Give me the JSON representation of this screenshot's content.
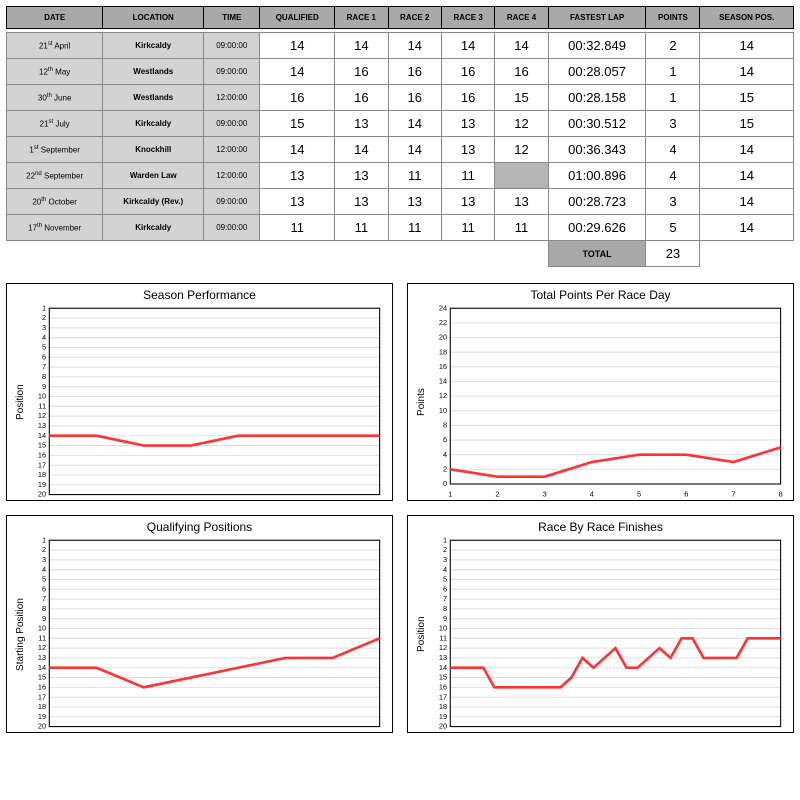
{
  "table": {
    "headers": [
      "DATE",
      "LOCATION",
      "TIME",
      "QUALIFIED",
      "RACE 1",
      "RACE 2",
      "RACE 3",
      "RACE 4",
      "FASTEST LAP",
      "POINTS",
      "SEASON POS."
    ],
    "rows": [
      {
        "date_d": "21",
        "date_ord": "st",
        "date_m": "April",
        "loc": "Kirkcaldy",
        "time": "09:00:00",
        "q": "14",
        "r1": "14",
        "r2": "14",
        "r3": "14",
        "r4": "14",
        "fl": "00:32.849",
        "pts": "2",
        "sp": "14"
      },
      {
        "date_d": "12",
        "date_ord": "th",
        "date_m": "May",
        "loc": "Westlands",
        "time": "09:00:00",
        "q": "14",
        "r1": "16",
        "r2": "16",
        "r3": "16",
        "r4": "16",
        "fl": "00:28.057",
        "pts": "1",
        "sp": "14"
      },
      {
        "date_d": "30",
        "date_ord": "th",
        "date_m": "June",
        "loc": "Westlands",
        "time": "12:00:00",
        "q": "16",
        "r1": "16",
        "r2": "16",
        "r3": "16",
        "r4": "15",
        "fl": "00:28.158",
        "pts": "1",
        "sp": "15"
      },
      {
        "date_d": "21",
        "date_ord": "st",
        "date_m": "July",
        "loc": "Kirkcaldy",
        "time": "09:00:00",
        "q": "15",
        "r1": "13",
        "r2": "14",
        "r3": "13",
        "r4": "12",
        "fl": "00:30.512",
        "pts": "3",
        "sp": "15"
      },
      {
        "date_d": "1",
        "date_ord": "st",
        "date_m": "September",
        "loc": "Knockhill",
        "time": "12:00:00",
        "q": "14",
        "r1": "14",
        "r2": "14",
        "r3": "13",
        "r4": "12",
        "fl": "00:36.343",
        "pts": "4",
        "sp": "14"
      },
      {
        "date_d": "22",
        "date_ord": "nd",
        "date_m": "September",
        "loc": "Warden Law",
        "time": "12:00:00",
        "q": "13",
        "r1": "13",
        "r2": "11",
        "r3": "11",
        "r4": "",
        "fl": "01:00.896",
        "pts": "4",
        "sp": "14",
        "r4_dnf": true
      },
      {
        "date_d": "20",
        "date_ord": "th",
        "date_m": "October",
        "loc": "Kirkcaldy (Rev.)",
        "time": "09:00:00",
        "q": "13",
        "r1": "13",
        "r2": "13",
        "r3": "13",
        "r4": "13",
        "fl": "00:28.723",
        "pts": "3",
        "sp": "14"
      },
      {
        "date_d": "17",
        "date_ord": "th",
        "date_m": "November",
        "loc": "Kirkcaldy",
        "time": "09:00:00",
        "q": "11",
        "r1": "11",
        "r2": "11",
        "r3": "11",
        "r4": "11",
        "fl": "00:29.626",
        "pts": "5",
        "sp": "14"
      }
    ],
    "total_label": "TOTAL",
    "total_val": "23"
  },
  "charts": {
    "line_color": "#ff3333",
    "grid_color": "#e0e0e0",
    "season": {
      "title": "Season Performance",
      "ylabel": "Position",
      "ymin": 1,
      "ymax": 20,
      "inverted": true,
      "ytick_step": 1,
      "x": [
        1,
        2,
        3,
        4,
        5,
        6,
        7,
        8
      ],
      "y": [
        14,
        14,
        15,
        15,
        14,
        14,
        14,
        14
      ]
    },
    "points": {
      "title": "Total Points Per Race Day",
      "ylabel": "Points",
      "ymin": 0,
      "ymax": 24,
      "inverted": false,
      "ytick_step": 2,
      "xticks": [
        1,
        2,
        3,
        4,
        5,
        6,
        7,
        8
      ],
      "x": [
        1,
        2,
        3,
        4,
        5,
        6,
        7,
        8
      ],
      "y": [
        2,
        1,
        1,
        3,
        4,
        4,
        3,
        5
      ]
    },
    "qual": {
      "title": "Qualifying Positions",
      "ylabel": "Starting Position",
      "ymin": 1,
      "ymax": 20,
      "inverted": true,
      "ytick_step": 1,
      "x": [
        1,
        2,
        3,
        4,
        5,
        6,
        7,
        8
      ],
      "y": [
        14,
        14,
        16,
        15,
        14,
        13,
        13,
        11
      ]
    },
    "race": {
      "title": "Race By Race Finishes",
      "ylabel": "Position",
      "ymin": 1,
      "ymax": 20,
      "inverted": true,
      "ytick_step": 1,
      "x": [
        1,
        2,
        3,
        4,
        5,
        6,
        7,
        8,
        9,
        10,
        11,
        12,
        13,
        14,
        15,
        16,
        17,
        18,
        19,
        20,
        21,
        22,
        23,
        24,
        25,
        26,
        27,
        28,
        29,
        30,
        31
      ],
      "y": [
        14,
        14,
        14,
        14,
        16,
        16,
        16,
        16,
        16,
        16,
        16,
        15,
        13,
        14,
        13,
        12,
        14,
        14,
        13,
        12,
        13,
        11,
        11,
        13,
        13,
        13,
        13,
        11,
        11,
        11,
        11
      ]
    }
  }
}
